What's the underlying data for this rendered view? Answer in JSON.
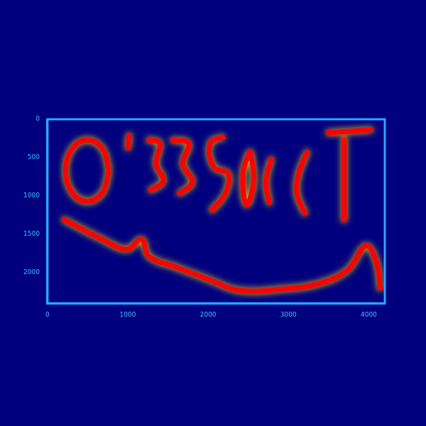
{
  "chart_data": {
    "type": "line",
    "xlim": [
      0,
      4200
    ],
    "xticks": [
      0,
      1000,
      2000,
      3000,
      4000
    ],
    "ylim": [
      2400,
      0
    ],
    "yticks": [
      0,
      500,
      1000,
      1500,
      2000
    ],
    "grid": false,
    "series": [
      {
        "color": "#ff0000",
        "x": [
          766,
          685,
          496,
          306,
          225,
          306,
          496,
          685,
          766
        ],
        "values": [
          670,
          955,
          1071,
          955,
          670,
          384,
          268,
          384,
          670
        ]
      },
      {
        "color": "#ff0000",
        "x": [
          1018,
          1000
        ],
        "values": [
          179,
          402
        ]
      },
      {
        "color": "#ff0000",
        "x": [
          1234,
          1396,
          1351,
          1441,
          1261
        ],
        "values": [
          268,
          312,
          580,
          804,
          938
        ]
      },
      {
        "color": "#ff0000",
        "x": [
          1532,
          1757,
          1685,
          1802,
          1622
        ],
        "values": [
          268,
          312,
          580,
          821,
          982
        ]
      },
      {
        "color": "#ff0000",
        "x": [
          2207,
          2027,
          2072,
          2252,
          2207,
          2027
        ],
        "values": [
          223,
          312,
          625,
          714,
          982,
          1205
        ]
      },
      {
        "color": "#ff0000",
        "x": [
          2523,
          2432,
          2477,
          2568,
          2523
        ],
        "values": [
          402,
          714,
          1116,
          804,
          402
        ]
      },
      {
        "color": "#ff0000",
        "x": [
          2793,
          2721,
          2766
        ],
        "values": [
          491,
          804,
          1116
        ]
      },
      {
        "color": "#ff0000",
        "x": [
          3243,
          3126,
          3108,
          3216
        ],
        "values": [
          402,
          714,
          982,
          1250
        ]
      },
      {
        "color": "#ff0000",
        "x": [
          3469,
          4054
        ],
        "values": [
          179,
          134
        ]
      },
      {
        "color": "#ff0000",
        "x": [
          3694,
          3694
        ],
        "values": [
          223,
          1339
        ]
      },
      {
        "color": "#ff0000",
        "x": [
          180,
          676,
          991,
          1171,
          1261,
          1577,
          2027,
          2388,
          2928,
          3379,
          3739,
          3964,
          4099,
          4144
        ],
        "values": [
          1295,
          1563,
          1696,
          1563,
          1786,
          1920,
          2098,
          2232,
          2214,
          2143,
          1964,
          1652,
          1875,
          2232
        ]
      }
    ]
  }
}
